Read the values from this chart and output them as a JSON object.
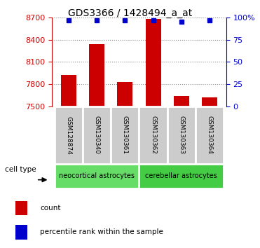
{
  "title": "GDS3366 / 1428494_a_at",
  "samples": [
    "GSM128874",
    "GSM130340",
    "GSM130361",
    "GSM130362",
    "GSM130363",
    "GSM130364"
  ],
  "counts": [
    7930,
    8340,
    7830,
    8680,
    7640,
    7620
  ],
  "percentiles": [
    97,
    97,
    97,
    97,
    95,
    97
  ],
  "ylim_left": [
    7500,
    8700
  ],
  "ylim_right": [
    0,
    100
  ],
  "yticks_left": [
    7500,
    7800,
    8100,
    8400,
    8700
  ],
  "yticks_right": [
    0,
    25,
    50,
    75,
    100
  ],
  "bar_color": "#cc0000",
  "dot_color": "#0000cc",
  "bar_baseline": 7500,
  "groups": [
    {
      "label": "neocortical astrocytes",
      "start": 0,
      "end": 3,
      "color": "#66dd66"
    },
    {
      "label": "cerebellar astrocytes",
      "start": 3,
      "end": 6,
      "color": "#44cc44"
    }
  ],
  "cell_type_label": "cell type",
  "legend_count_label": "count",
  "legend_pct_label": "percentile rank within the sample",
  "left_axis_color": "#cc0000",
  "right_axis_color": "#0000cc",
  "label_box_color": "#cccccc",
  "title_fontsize": 10,
  "tick_fontsize": 8,
  "label_fontsize": 6.5,
  "ct_fontsize": 7,
  "legend_fontsize": 7.5
}
